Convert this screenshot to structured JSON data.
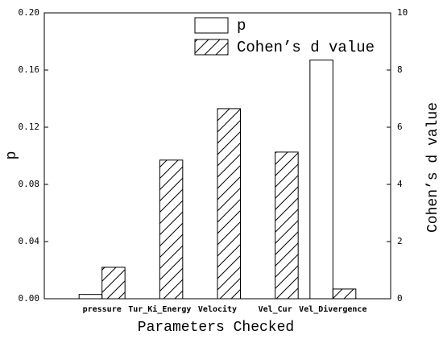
{
  "chart_data": {
    "type": "bar",
    "x_label": "Parameters Checked",
    "y_label": "p",
    "y2_label": "Cohen’s d value",
    "categories": [
      "pressure",
      "Tur_Ki_Energy",
      "Velocity",
      "Vel_Cur",
      "Vel_Divergence"
    ],
    "series": [
      {
        "name": "p",
        "color": "#000000",
        "pattern": "none",
        "values": [
          0.003,
          0,
          0,
          0,
          0.167
        ]
      },
      {
        "name": "Cohen’s d value",
        "color": "#000000",
        "pattern": "hatch",
        "axis": "y2",
        "values": [
          1.1,
          4.85,
          6.65,
          5.13,
          0.34
        ]
      }
    ],
    "ylim": [
      0,
      0.2
    ],
    "yticks": [
      {
        "value": 0,
        "label": "0.00"
      },
      0.04,
      0.08,
      0.12,
      0.16,
      {
        "value": 0.2,
        "label": "0.20"
      }
    ],
    "y2lim": [
      0,
      10
    ],
    "y2ticks": [
      0,
      2,
      4,
      6,
      8,
      10
    ]
  }
}
